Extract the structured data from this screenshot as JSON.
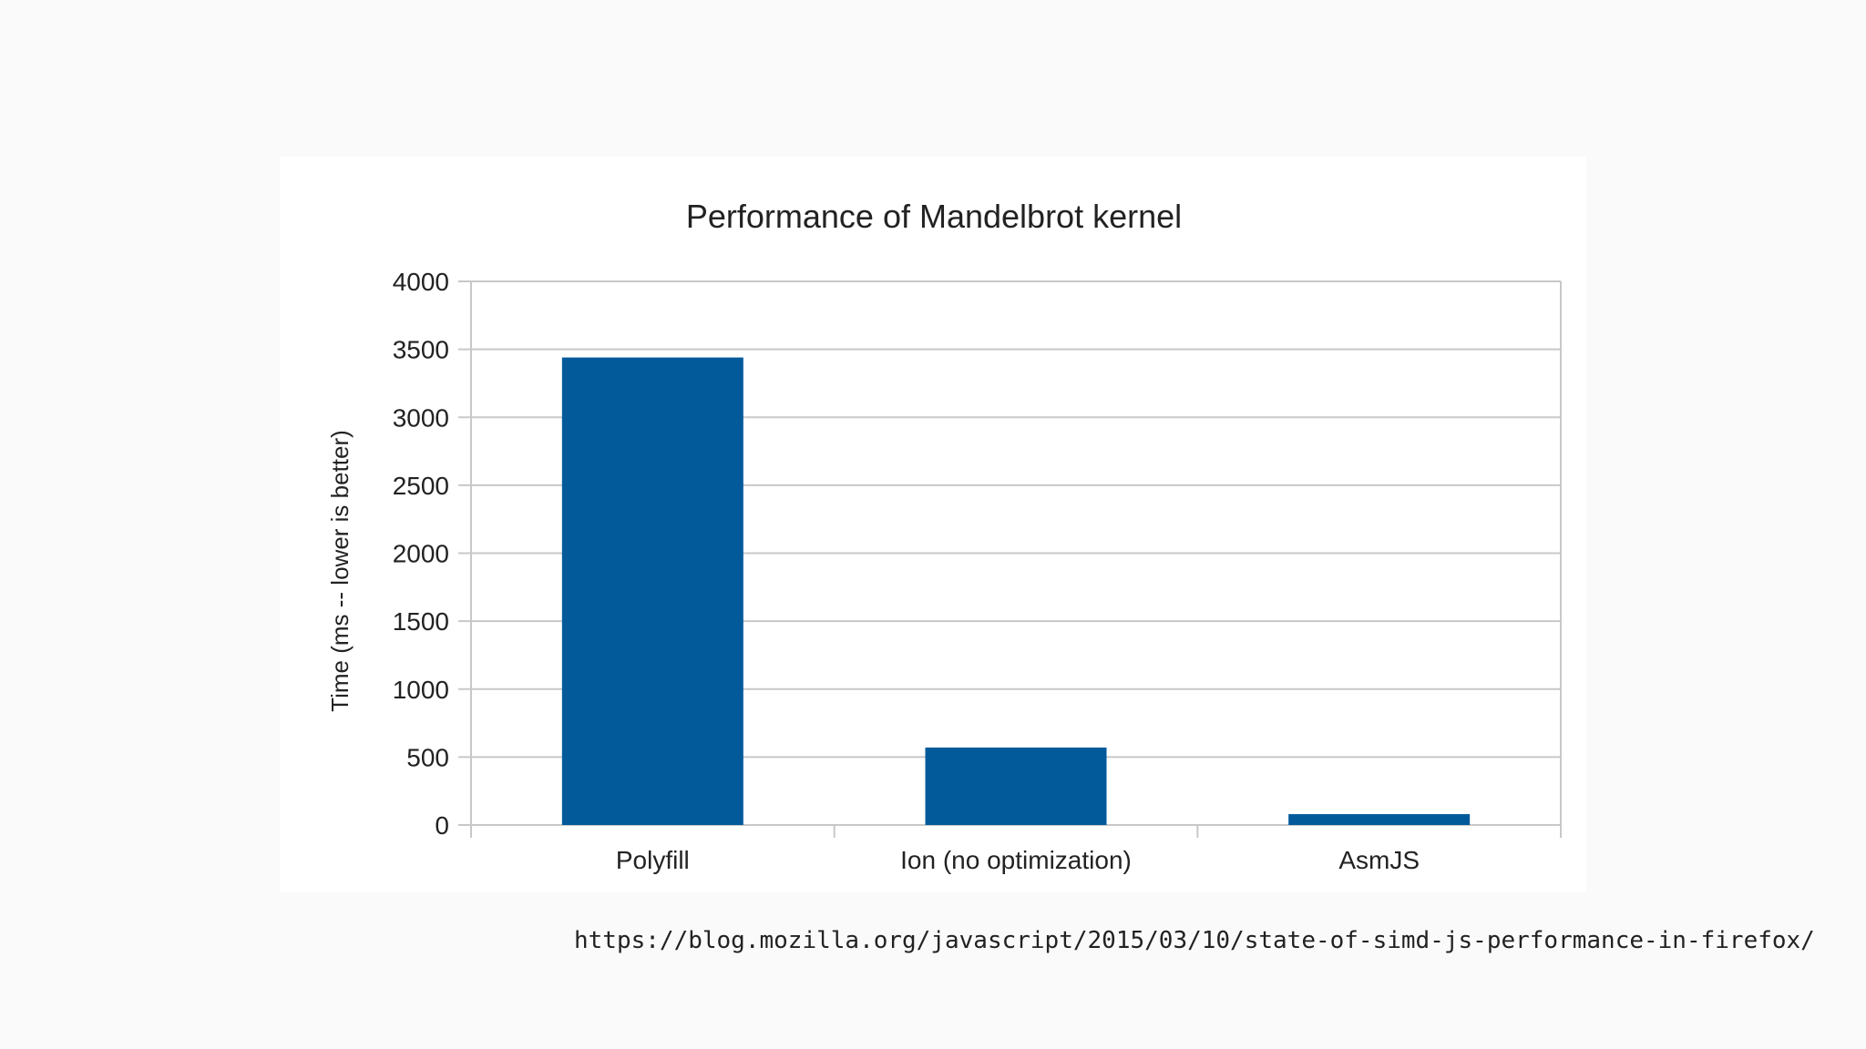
{
  "slide": {
    "source_url": "https://blog.mozilla.org/javascript/2015/03/10/state-of-simd-js-performance-in-firefox/"
  },
  "chart_data": {
    "type": "bar",
    "title": "Performance of Mandelbrot kernel",
    "xlabel": "",
    "ylabel": "Time (ms -- lower is better)",
    "categories": [
      "Polyfill",
      "Ion (no optimization)",
      "AsmJS"
    ],
    "values": [
      3440,
      570,
      80
    ],
    "ylim": [
      0,
      4000
    ],
    "yticks": [
      0,
      500,
      1000,
      1500,
      2000,
      2500,
      3000,
      3500,
      4000
    ],
    "grid": true,
    "legend": "none",
    "colors": {
      "bar": "#035a9b",
      "grid": "#c8c8c8",
      "text": "#222222",
      "background": "#ffffff"
    }
  }
}
